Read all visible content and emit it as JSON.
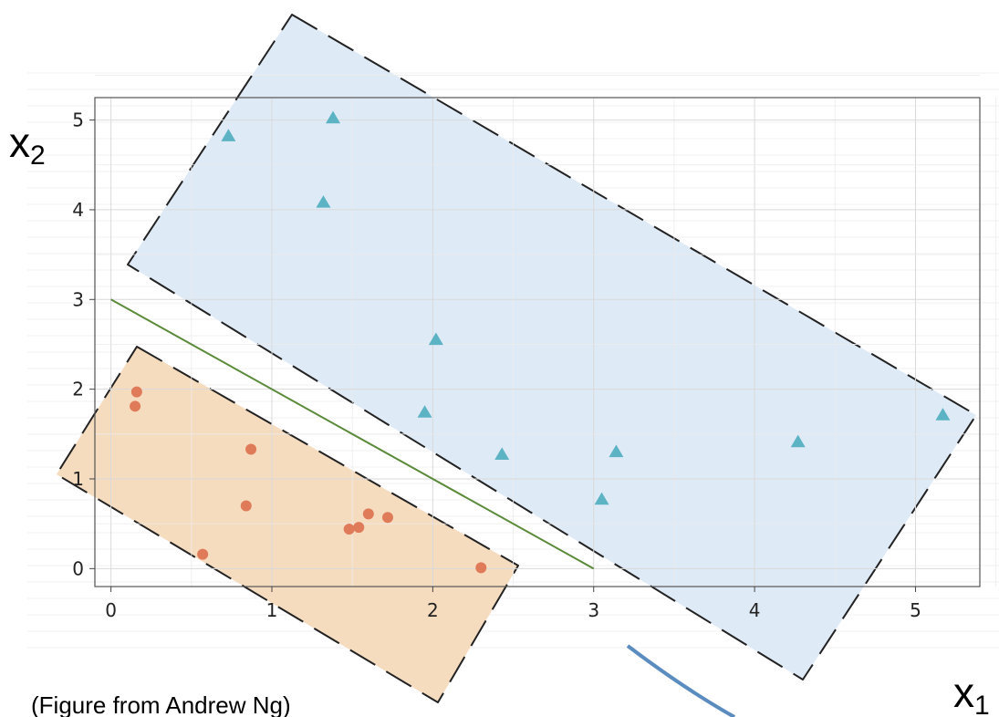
{
  "chart_data": {
    "type": "scatter",
    "title": "",
    "xlabel": "x",
    "xlabel_sub": "1",
    "ylabel": "x",
    "ylabel_sub": "2",
    "caption": "(Figure from Andrew Ng)",
    "xlim": [
      -0.1,
      5.4
    ],
    "ylim": [
      -0.2,
      5.25
    ],
    "x_ticks": [
      0,
      1,
      2,
      3,
      4,
      5
    ],
    "y_ticks": [
      0,
      1,
      2,
      3,
      4,
      5
    ],
    "grid": true,
    "series": [
      {
        "marker": "circle",
        "color": "#e07b5a",
        "points": [
          [
            0.16,
            1.97
          ],
          [
            0.15,
            1.81
          ],
          [
            0.87,
            1.33
          ],
          [
            0.84,
            0.7
          ],
          [
            0.57,
            0.16
          ],
          [
            1.48,
            0.44
          ],
          [
            1.54,
            0.46
          ],
          [
            1.6,
            0.61
          ],
          [
            1.72,
            0.57
          ],
          [
            2.3,
            0.01
          ]
        ]
      },
      {
        "marker": "triangle",
        "color": "#5bb3c4",
        "points": [
          [
            0.73,
            4.82
          ],
          [
            1.38,
            5.02
          ],
          [
            1.32,
            4.08
          ],
          [
            2.02,
            2.55
          ],
          [
            1.95,
            1.74
          ],
          [
            2.43,
            1.27
          ],
          [
            3.14,
            1.3
          ],
          [
            3.05,
            0.77
          ],
          [
            4.27,
            1.41
          ],
          [
            5.17,
            1.71
          ]
        ]
      }
    ],
    "decision_boundary": {
      "x": [
        0,
        3
      ],
      "y": [
        3,
        0
      ],
      "color": "#5a8a3a"
    },
    "regions": [
      {
        "name": "orange",
        "fill": "#f5dcbf"
      },
      {
        "name": "blue",
        "fill": "#ddeaf7"
      }
    ]
  }
}
